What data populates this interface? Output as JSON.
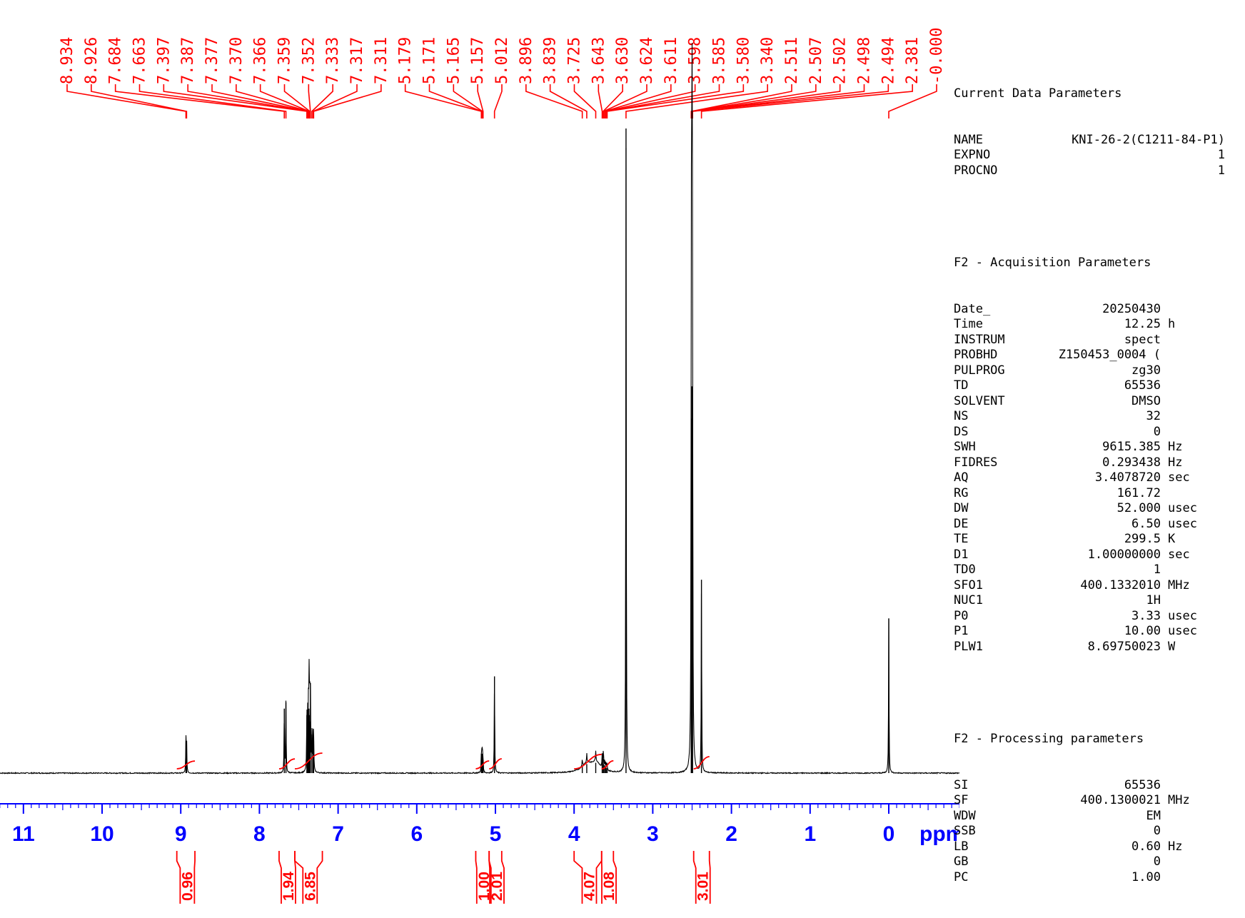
{
  "chart_data": {
    "type": "line",
    "title": "",
    "xlabel": "ppm",
    "ylabel": "",
    "xlim": [
      11.2,
      -1.0
    ],
    "x_reversed": true,
    "x_ticks": [
      "11",
      "10",
      "9",
      "8",
      "7",
      "6",
      "5",
      "4",
      "3",
      "2",
      "1",
      "0"
    ],
    "x_tick_values": [
      11,
      10,
      9,
      8,
      7,
      6,
      5,
      4,
      3,
      2,
      1,
      0
    ],
    "colors": {
      "spectrum": "#000000",
      "peak_labels": "#ff0000",
      "integrals": "#ff0000",
      "axis": "#0000ff"
    },
    "peak_labels": [
      "8.934",
      "8.926",
      "7.684",
      "7.663",
      "7.397",
      "7.387",
      "7.377",
      "7.370",
      "7.366",
      "7.359",
      "7.352",
      "7.333",
      "7.317",
      "7.311",
      "5.179",
      "5.171",
      "5.165",
      "5.157",
      "5.012",
      "3.896",
      "3.839",
      "3.725",
      "3.643",
      "3.630",
      "3.624",
      "3.611",
      "3.598",
      "3.585",
      "3.580",
      "3.340",
      "2.511",
      "2.507",
      "2.502",
      "2.498",
      "2.494",
      "2.381",
      "-0.000"
    ],
    "peaks": [
      {
        "x": 8.934,
        "y": 0.05
      },
      {
        "x": 8.926,
        "y": 0.05
      },
      {
        "x": 7.684,
        "y": 0.1
      },
      {
        "x": 7.663,
        "y": 0.11
      },
      {
        "x": 7.397,
        "y": 0.09
      },
      {
        "x": 7.387,
        "y": 0.08
      },
      {
        "x": 7.377,
        "y": 0.09
      },
      {
        "x": 7.37,
        "y": 0.1
      },
      {
        "x": 7.366,
        "y": 0.09
      },
      {
        "x": 7.359,
        "y": 0.08
      },
      {
        "x": 7.352,
        "y": 0.14
      },
      {
        "x": 7.333,
        "y": 0.06
      },
      {
        "x": 7.317,
        "y": 0.06
      },
      {
        "x": 7.311,
        "y": 0.05
      },
      {
        "x": 5.179,
        "y": 0.03
      },
      {
        "x": 5.171,
        "y": 0.03
      },
      {
        "x": 5.165,
        "y": 0.03
      },
      {
        "x": 5.157,
        "y": 0.02
      },
      {
        "x": 5.012,
        "y": 0.15
      },
      {
        "x": 3.896,
        "y": 0.012
      },
      {
        "x": 3.839,
        "y": 0.014
      },
      {
        "x": 3.725,
        "y": 0.016
      },
      {
        "x": 3.643,
        "y": 0.02
      },
      {
        "x": 3.63,
        "y": 0.022
      },
      {
        "x": 3.624,
        "y": 0.014
      },
      {
        "x": 3.611,
        "y": 0.012
      },
      {
        "x": 3.598,
        "y": 0.01
      },
      {
        "x": 3.585,
        "y": 0.008
      },
      {
        "x": 3.58,
        "y": 0.006
      },
      {
        "x": 3.34,
        "y": 1.0
      },
      {
        "x": 2.511,
        "y": 0.45
      },
      {
        "x": 2.507,
        "y": 0.55
      },
      {
        "x": 2.502,
        "y": 0.6
      },
      {
        "x": 2.498,
        "y": 0.55
      },
      {
        "x": 2.494,
        "y": 0.45
      },
      {
        "x": 2.381,
        "y": 0.3
      },
      {
        "x": 0.0,
        "y": 0.24
      }
    ],
    "broad_bands": [
      {
        "x": 3.84,
        "y": 0.013,
        "width": 0.08
      },
      {
        "x": 3.72,
        "y": 0.015,
        "width": 0.07
      }
    ],
    "integrals": [
      {
        "label": "0.96",
        "from": 9.05,
        "to": 8.82
      },
      {
        "label": "1.94",
        "from": 7.75,
        "to": 7.55
      },
      {
        "label": "6.85",
        "from": 7.55,
        "to": 7.2
      },
      {
        "label": "1.00",
        "from": 5.25,
        "to": 5.08
      },
      {
        "label": "2.01",
        "from": 5.08,
        "to": 4.92
      },
      {
        "label": "4.07",
        "from": 4.0,
        "to": 3.65
      },
      {
        "label": "1.08",
        "from": 3.65,
        "to": 3.5
      },
      {
        "label": "3.01",
        "from": 2.48,
        "to": 2.28
      }
    ]
  },
  "parameters": {
    "current_title": "Current Data Parameters",
    "current": [
      {
        "name": "NAME",
        "value": "KNI-26-2(C1211-84-P1)",
        "unit": ""
      },
      {
        "name": "EXPNO",
        "value": "1",
        "unit": ""
      },
      {
        "name": "PROCNO",
        "value": "1",
        "unit": ""
      }
    ],
    "acq_title": "F2 - Acquisition Parameters",
    "acq": [
      {
        "name": "Date_",
        "value": "20250430",
        "unit": ""
      },
      {
        "name": "Time",
        "value": "12.25",
        "unit": "h"
      },
      {
        "name": "INSTRUM",
        "value": "spect",
        "unit": ""
      },
      {
        "name": "PROBHD",
        "value": "Z150453_0004 (",
        "unit": ""
      },
      {
        "name": "PULPROG",
        "value": "zg30",
        "unit": ""
      },
      {
        "name": "TD",
        "value": "65536",
        "unit": ""
      },
      {
        "name": "SOLVENT",
        "value": "DMSO",
        "unit": ""
      },
      {
        "name": "NS",
        "value": "32",
        "unit": ""
      },
      {
        "name": "DS",
        "value": "0",
        "unit": ""
      },
      {
        "name": "SWH",
        "value": "9615.385",
        "unit": "Hz"
      },
      {
        "name": "FIDRES",
        "value": "0.293438",
        "unit": "Hz"
      },
      {
        "name": "AQ",
        "value": "3.4078720",
        "unit": "sec"
      },
      {
        "name": "RG",
        "value": "161.72",
        "unit": ""
      },
      {
        "name": "DW",
        "value": "52.000",
        "unit": "usec"
      },
      {
        "name": "DE",
        "value": "6.50",
        "unit": "usec"
      },
      {
        "name": "TE",
        "value": "299.5",
        "unit": "K"
      },
      {
        "name": "D1",
        "value": "1.00000000",
        "unit": "sec"
      },
      {
        "name": "TD0",
        "value": "1",
        "unit": ""
      },
      {
        "name": "SFO1",
        "value": "400.1332010",
        "unit": "MHz"
      },
      {
        "name": "NUC1",
        "value": "1H",
        "unit": ""
      },
      {
        "name": "P0",
        "value": "3.33",
        "unit": "usec"
      },
      {
        "name": "P1",
        "value": "10.00",
        "unit": "usec"
      },
      {
        "name": "PLW1",
        "value": "8.69750023",
        "unit": "W"
      }
    ],
    "proc_title": "F2 - Processing parameters",
    "proc": [
      {
        "name": "SI",
        "value": "65536",
        "unit": ""
      },
      {
        "name": "SF",
        "value": "400.1300021",
        "unit": "MHz"
      },
      {
        "name": "WDW",
        "value": "EM",
        "unit": ""
      },
      {
        "name": "SSB",
        "value": "0",
        "unit": ""
      },
      {
        "name": "LB",
        "value": "0.60",
        "unit": "Hz"
      },
      {
        "name": "GB",
        "value": "0",
        "unit": ""
      },
      {
        "name": "PC",
        "value": "1.00",
        "unit": ""
      }
    ]
  }
}
